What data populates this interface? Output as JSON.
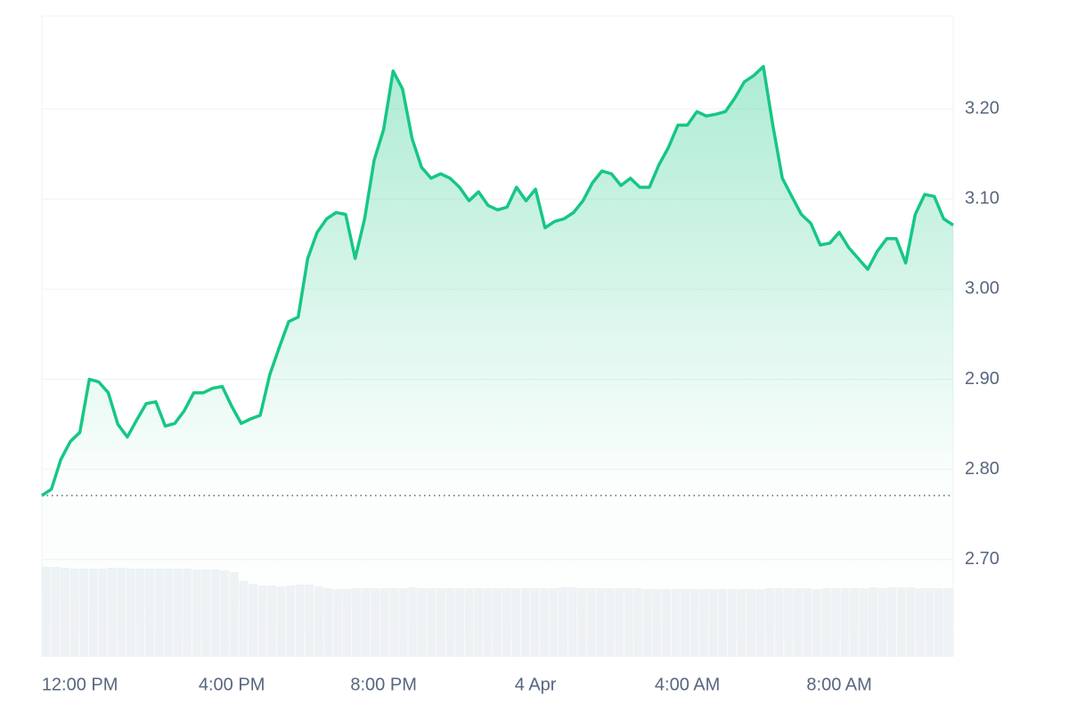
{
  "chart_data": {
    "type": "line",
    "color": "#16c784",
    "values": [
      2.771,
      2.778,
      2.811,
      2.831,
      2.841,
      2.9,
      2.897,
      2.885,
      2.85,
      2.836,
      2.855,
      2.873,
      2.875,
      2.848,
      2.851,
      2.865,
      2.885,
      2.885,
      2.89,
      2.892,
      2.87,
      2.851,
      2.856,
      2.86,
      2.905,
      2.935,
      2.964,
      2.969,
      3.034,
      3.063,
      3.078,
      3.085,
      3.083,
      3.034,
      3.078,
      3.143,
      3.177,
      3.242,
      3.222,
      3.167,
      3.135,
      3.123,
      3.128,
      3.123,
      3.113,
      3.098,
      3.108,
      3.093,
      3.088,
      3.091,
      3.113,
      3.098,
      3.111,
      3.068,
      3.075,
      3.078,
      3.085,
      3.098,
      3.118,
      3.131,
      3.128,
      3.115,
      3.123,
      3.113,
      3.113,
      3.138,
      3.157,
      3.182,
      3.182,
      3.197,
      3.192,
      3.194,
      3.197,
      3.212,
      3.23,
      3.237,
      3.247,
      3.182,
      3.123,
      3.103,
      3.083,
      3.073,
      3.049,
      3.051,
      3.063,
      3.046,
      3.034,
      3.022,
      3.042,
      3.056,
      3.056,
      3.029,
      3.083,
      3.105,
      3.103,
      3.078,
      3.071
    ],
    "baseline": 2.771,
    "volume": [
      101,
      101,
      100,
      99,
      99,
      99,
      99,
      100,
      100,
      99,
      99,
      99,
      99,
      99,
      99,
      99,
      98,
      98,
      98,
      97,
      95,
      85,
      82,
      80,
      80,
      79,
      80,
      81,
      81,
      79,
      77,
      76,
      76,
      77,
      77,
      77,
      77,
      77,
      77,
      78,
      77,
      77,
      77,
      77,
      77,
      77,
      77,
      77,
      77,
      77,
      77,
      77,
      77,
      77,
      77,
      78,
      78,
      77,
      77,
      77,
      77,
      77,
      77,
      77,
      76,
      76,
      76,
      76,
      76,
      76,
      76,
      76,
      76,
      76,
      76,
      76,
      76,
      77,
      77,
      77,
      77,
      77,
      76,
      77,
      77,
      77,
      77,
      77,
      78,
      77,
      78,
      78,
      78,
      77,
      77,
      77,
      77
    ],
    "volume_lim": [
      0,
      719
    ],
    "xlim": [
      0,
      96
    ],
    "xticks": [
      {
        "value": 4,
        "label": "12:00 PM"
      },
      {
        "value": 20,
        "label": "4:00 PM"
      },
      {
        "value": 36,
        "label": "8:00 PM"
      },
      {
        "value": 52,
        "label": "4 Apr"
      },
      {
        "value": 68,
        "label": "4:00 AM"
      },
      {
        "value": 84,
        "label": "8:00 AM"
      }
    ],
    "ylim": [
      2.592,
      3.303
    ],
    "yticks": [
      {
        "value": 2.7,
        "label": "2.70"
      },
      {
        "value": 2.8,
        "label": "2.80"
      },
      {
        "value": 2.9,
        "label": "2.90"
      },
      {
        "value": 3.0,
        "label": "3.00"
      },
      {
        "value": 3.1,
        "label": "3.10"
      },
      {
        "value": 3.2,
        "label": "3.20"
      }
    ],
    "grid": true
  }
}
